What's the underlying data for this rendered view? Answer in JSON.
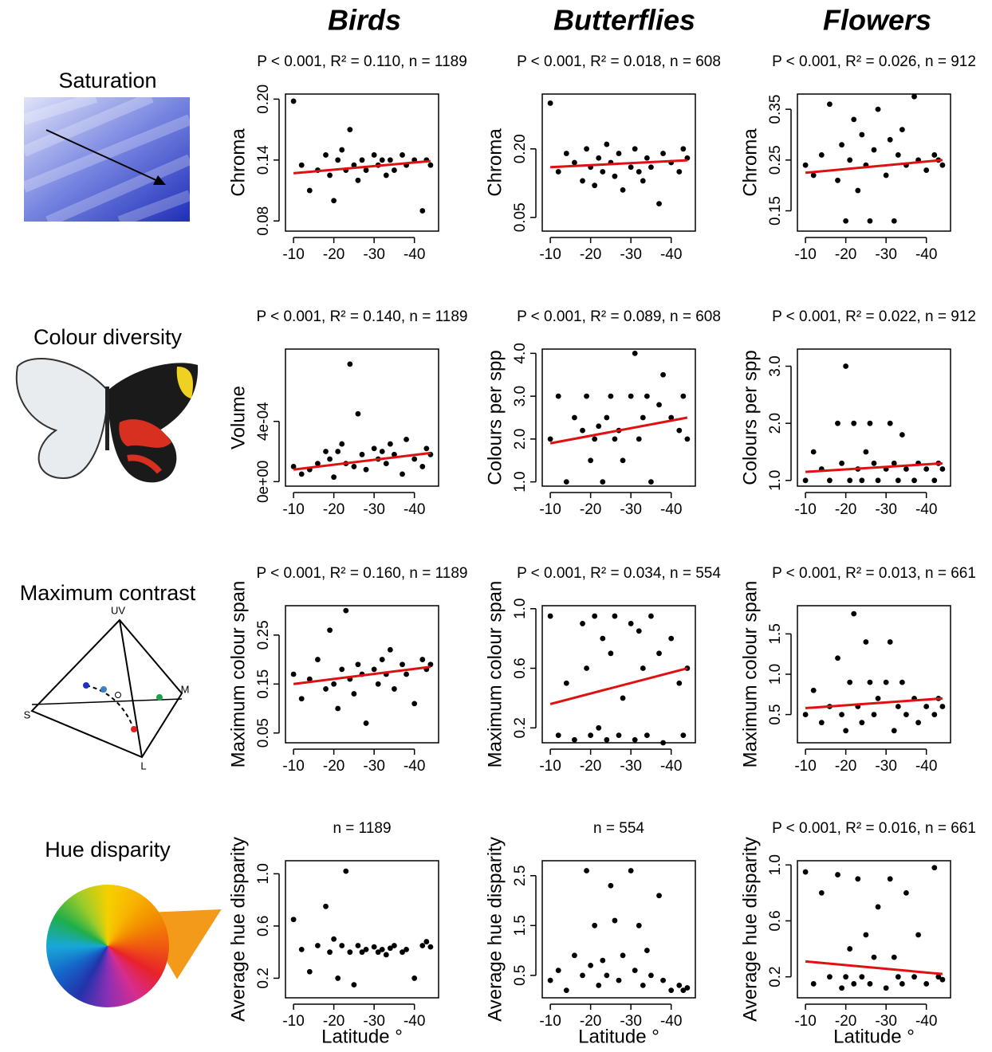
{
  "column_titles": [
    "Birds",
    "Butterflies",
    "Flowers"
  ],
  "row_titles": [
    "Saturation",
    "Colour diversity",
    "Maximum contrast",
    "Hue disparity"
  ],
  "tetrahedron_labels": [
    "UV",
    "S",
    "M",
    "L"
  ],
  "chart_data": [
    {
      "type": "scatter",
      "title": "P < 0.001, R² = 0.110, n = 1189",
      "ylabel": "Chroma",
      "xlim": [
        -8,
        -46
      ],
      "xticks": [
        -10,
        -20,
        -30,
        -40
      ],
      "ylim": [
        0.07,
        0.205
      ],
      "yticks": [
        {
          "value": 0.08,
          "label": "0.08"
        },
        0.14,
        {
          "value": 0.2,
          "label": "0.20"
        }
      ],
      "x": [
        -10,
        -12,
        -14,
        -16,
        -18,
        -19,
        -20,
        -21,
        -22,
        -23,
        -24,
        -25,
        -26,
        -27,
        -28,
        -30,
        -31,
        -32,
        -33,
        -34,
        -35,
        -37,
        -38,
        -40,
        -42,
        -43,
        -44
      ],
      "y": [
        0.198,
        0.135,
        0.11,
        0.13,
        0.145,
        0.125,
        0.1,
        0.14,
        0.15,
        0.13,
        0.17,
        0.135,
        0.12,
        0.14,
        0.13,
        0.145,
        0.135,
        0.14,
        0.125,
        0.14,
        0.13,
        0.145,
        0.135,
        0.14,
        0.09,
        0.14,
        0.135
      ],
      "color": "#000000",
      "trend": {
        "color": "#e01010",
        "x": [
          -10,
          -44
        ],
        "y": [
          0.127,
          0.139
        ]
      }
    },
    {
      "type": "scatter",
      "title": "P < 0.001, R² = 0.018, n = 608",
      "ylabel": "Chroma",
      "xlim": [
        -8,
        -46
      ],
      "xticks": [
        -10,
        -20,
        -30,
        -40
      ],
      "ylim": [
        0.02,
        0.32
      ],
      "yticks": [
        0.05,
        {
          "value": 0.2,
          "label": "0.20"
        }
      ],
      "x": [
        -10,
        -12,
        -14,
        -16,
        -18,
        -19,
        -20,
        -21,
        -22,
        -23,
        -24,
        -25,
        -26,
        -27,
        -28,
        -30,
        -31,
        -32,
        -33,
        -34,
        -35,
        -37,
        -38,
        -40,
        -42,
        -43,
        -44
      ],
      "y": [
        0.3,
        0.15,
        0.19,
        0.17,
        0.13,
        0.2,
        0.16,
        0.12,
        0.18,
        0.15,
        0.21,
        0.17,
        0.14,
        0.19,
        0.11,
        0.16,
        0.2,
        0.15,
        0.13,
        0.18,
        0.16,
        0.08,
        0.19,
        0.17,
        0.15,
        0.2,
        0.18
      ],
      "color": "#000000",
      "trend": {
        "color": "#e01010",
        "x": [
          -10,
          -44
        ],
        "y": [
          0.16,
          0.175
        ]
      }
    },
    {
      "type": "scatter",
      "title": "P < 0.001, R² = 0.026, n = 912",
      "ylabel": "Chroma",
      "xlim": [
        -8,
        -46
      ],
      "xticks": [
        -10,
        -20,
        -30,
        -40
      ],
      "ylim": [
        0.11,
        0.38
      ],
      "yticks": [
        0.15,
        0.25,
        0.35
      ],
      "x": [
        -10,
        -12,
        -14,
        -16,
        -18,
        -19,
        -20,
        -21,
        -22,
        -23,
        -24,
        -25,
        -26,
        -27,
        -28,
        -30,
        -31,
        -32,
        -33,
        -34,
        -35,
        -37,
        -38,
        -40,
        -42,
        -43,
        -44
      ],
      "y": [
        0.24,
        0.22,
        0.26,
        0.36,
        0.21,
        0.28,
        0.13,
        0.25,
        0.33,
        0.19,
        0.3,
        0.24,
        0.13,
        0.27,
        0.35,
        0.22,
        0.29,
        0.13,
        0.26,
        0.31,
        0.24,
        0.375,
        0.25,
        0.23,
        0.26,
        0.25,
        0.24
      ],
      "color": "#000000",
      "trend": {
        "color": "#e01010",
        "x": [
          -10,
          -44
        ],
        "y": [
          0.225,
          0.25
        ]
      }
    },
    {
      "type": "scatter",
      "title": "P < 0.001, R² = 0.140, n = 1189",
      "ylabel": "Volume",
      "xlim": [
        -8,
        -46
      ],
      "xticks": [
        -10,
        -20,
        -30,
        -40
      ],
      "ylim": [
        -3e-05,
        0.00088
      ],
      "yticks": [
        {
          "value": 0,
          "label": "0e+00"
        },
        {
          "value": 0.0004,
          "label": "4e-04"
        }
      ],
      "x": [
        -10,
        -12,
        -14,
        -16,
        -18,
        -19,
        -20,
        -21,
        -22,
        -23,
        -24,
        -25,
        -26,
        -27,
        -28,
        -30,
        -31,
        -32,
        -33,
        -34,
        -35,
        -37,
        -38,
        -40,
        -42,
        -43,
        -44
      ],
      "y": [
        0.0001,
        5e-05,
        8e-05,
        0.00012,
        0.0002,
        0.00015,
        3e-05,
        0.0002,
        0.00025,
        0.00012,
        0.00078,
        0.0001,
        0.00045,
        0.00018,
        8e-05,
        0.00022,
        0.00015,
        0.0002,
        0.00012,
        0.00025,
        0.00018,
        5e-05,
        0.00028,
        0.00015,
        0.0001,
        0.00022,
        0.00018
      ],
      "color": "#000000",
      "trend": {
        "color": "#e01010",
        "x": [
          -10,
          -44
        ],
        "y": [
          8e-05,
          0.00019
        ]
      }
    },
    {
      "type": "scatter",
      "title": "P < 0.001, R² = 0.089, n = 608",
      "ylabel": "Colours per spp",
      "xlim": [
        -8,
        -46
      ],
      "xticks": [
        -10,
        -20,
        -30,
        -40
      ],
      "ylim": [
        0.9,
        4.1
      ],
      "yticks": [
        {
          "value": 1,
          "label": "1.0"
        },
        {
          "value": 2,
          "label": "2.0"
        },
        {
          "value": 3,
          "label": "3.0"
        },
        {
          "value": 4,
          "label": "4.0"
        }
      ],
      "x": [
        -10,
        -12,
        -14,
        -16,
        -18,
        -19,
        -20,
        -21,
        -22,
        -23,
        -24,
        -25,
        -26,
        -27,
        -28,
        -30,
        -31,
        -32,
        -33,
        -34,
        -35,
        -37,
        -38,
        -40,
        -42,
        -43,
        -44
      ],
      "y": [
        2.0,
        3.0,
        1.0,
        2.5,
        2.2,
        3.0,
        1.5,
        2.0,
        2.3,
        1.0,
        2.5,
        3.0,
        2.0,
        2.2,
        1.5,
        3.0,
        4.0,
        2.0,
        2.5,
        3.0,
        1.0,
        2.8,
        3.5,
        2.5,
        2.2,
        3.0,
        2.0
      ],
      "color": "#000000",
      "trend": {
        "color": "#e01010",
        "x": [
          -10,
          -44
        ],
        "y": [
          1.9,
          2.5
        ]
      }
    },
    {
      "type": "scatter",
      "title": "P < 0.001, R² = 0.022, n = 912",
      "ylabel": "Colours per spp",
      "xlim": [
        -8,
        -46
      ],
      "xticks": [
        -10,
        -20,
        -30,
        -40
      ],
      "ylim": [
        0.9,
        3.3
      ],
      "yticks": [
        {
          "value": 1,
          "label": "1.0"
        },
        {
          "value": 2,
          "label": "2.0"
        },
        {
          "value": 3,
          "label": "3.0"
        }
      ],
      "x": [
        -10,
        -12,
        -14,
        -16,
        -18,
        -19,
        -20,
        -21,
        -22,
        -23,
        -24,
        -25,
        -26,
        -27,
        -28,
        -30,
        -31,
        -32,
        -33,
        -34,
        -35,
        -37,
        -38,
        -40,
        -42,
        -43,
        -44
      ],
      "y": [
        1.0,
        1.5,
        1.2,
        1.0,
        2.0,
        1.3,
        3.0,
        1.0,
        2.0,
        1.2,
        1.0,
        1.5,
        2.0,
        1.3,
        1.0,
        1.2,
        2.0,
        1.3,
        1.0,
        1.8,
        1.2,
        1.0,
        1.3,
        1.2,
        1.0,
        1.3,
        1.2
      ],
      "color": "#000000",
      "trend": {
        "color": "#e01010",
        "x": [
          -10,
          -44
        ],
        "y": [
          1.15,
          1.3
        ]
      }
    },
    {
      "type": "scatter",
      "title": "P < 0.001, R² = 0.160, n = 1189",
      "ylabel": "Maximum colour span",
      "xlim": [
        -8,
        -46
      ],
      "xticks": [
        -10,
        -20,
        -30,
        -40
      ],
      "ylim": [
        0.03,
        0.31
      ],
      "yticks": [
        0.05,
        0.15,
        0.25
      ],
      "x": [
        -10,
        -12,
        -14,
        -16,
        -18,
        -19,
        -20,
        -21,
        -22,
        -23,
        -24,
        -25,
        -26,
        -27,
        -28,
        -30,
        -31,
        -32,
        -33,
        -34,
        -35,
        -37,
        -38,
        -40,
        -42,
        -43,
        -44
      ],
      "y": [
        0.17,
        0.12,
        0.16,
        0.2,
        0.14,
        0.26,
        0.15,
        0.1,
        0.18,
        0.3,
        0.16,
        0.13,
        0.19,
        0.17,
        0.07,
        0.18,
        0.15,
        0.2,
        0.17,
        0.22,
        0.14,
        0.19,
        0.17,
        0.11,
        0.2,
        0.18,
        0.19
      ],
      "color": "#000000",
      "trend": {
        "color": "#e01010",
        "x": [
          -10,
          -44
        ],
        "y": [
          0.15,
          0.185
        ]
      }
    },
    {
      "type": "scatter",
      "title": "P < 0.001, R² = 0.034, n = 554",
      "ylabel": "Maximum colour span",
      "xlim": [
        -8,
        -46
      ],
      "xticks": [
        -10,
        -20,
        -30,
        -40
      ],
      "ylim": [
        0.1,
        1.02
      ],
      "yticks": [
        0.2,
        0.6,
        {
          "value": 1,
          "label": "1.0"
        }
      ],
      "x": [
        -10,
        -12,
        -14,
        -16,
        -18,
        -19,
        -20,
        -21,
        -22,
        -23,
        -24,
        -25,
        -26,
        -27,
        -28,
        -30,
        -31,
        -32,
        -33,
        -34,
        -35,
        -37,
        -38,
        -40,
        -42,
        -43,
        -44
      ],
      "y": [
        0.95,
        0.15,
        0.5,
        0.12,
        0.9,
        0.6,
        0.15,
        0.95,
        0.2,
        0.8,
        0.12,
        0.7,
        0.95,
        0.15,
        0.4,
        0.9,
        0.12,
        0.85,
        0.6,
        0.15,
        0.95,
        0.7,
        0.1,
        0.8,
        0.5,
        0.15,
        0.6
      ],
      "color": "#000000",
      "trend": {
        "color": "#e01010",
        "x": [
          -10,
          -44
        ],
        "y": [
          0.36,
          0.6
        ]
      }
    },
    {
      "type": "scatter",
      "title": "P < 0.001, R² = 0.013, n = 661",
      "ylabel": "Maximum colour span",
      "xlim": [
        -8,
        -46
      ],
      "xticks": [
        -10,
        -20,
        -30,
        -40
      ],
      "ylim": [
        0.15,
        1.85
      ],
      "yticks": [
        0.5,
        {
          "value": 1,
          "label": "1.0"
        },
        1.5
      ],
      "x": [
        -10,
        -12,
        -14,
        -16,
        -18,
        -19,
        -20,
        -21,
        -22,
        -23,
        -24,
        -25,
        -26,
        -27,
        -28,
        -30,
        -31,
        -32,
        -33,
        -34,
        -35,
        -37,
        -38,
        -40,
        -42,
        -43,
        -44
      ],
      "y": [
        0.5,
        0.8,
        0.4,
        0.6,
        1.2,
        0.5,
        0.3,
        0.9,
        1.75,
        0.6,
        0.4,
        1.4,
        0.9,
        0.5,
        0.7,
        0.9,
        1.4,
        0.3,
        0.6,
        0.9,
        0.5,
        0.7,
        0.4,
        0.6,
        0.5,
        0.7,
        0.6
      ],
      "color": "#000000",
      "trend": {
        "color": "#e01010",
        "x": [
          -10,
          -44
        ],
        "y": [
          0.58,
          0.7
        ]
      }
    },
    {
      "type": "scatter",
      "title": "n = 1189",
      "ylabel": "Average hue disparity",
      "xlabel": "Latitude °",
      "xlim": [
        -8,
        -46
      ],
      "xticks": [
        -10,
        -20,
        -30,
        -40
      ],
      "ylim": [
        0.05,
        1.1
      ],
      "yticks": [
        0.2,
        0.6,
        {
          "value": 1,
          "label": "1.0"
        }
      ],
      "x": [
        -10,
        -12,
        -14,
        -16,
        -18,
        -19,
        -20,
        -21,
        -22,
        -23,
        -24,
        -25,
        -26,
        -27,
        -28,
        -30,
        -31,
        -32,
        -33,
        -34,
        -35,
        -37,
        -38,
        -40,
        -42,
        -43,
        -44
      ],
      "y": [
        0.65,
        0.42,
        0.25,
        0.45,
        0.75,
        0.4,
        0.5,
        0.2,
        0.45,
        1.02,
        0.4,
        0.15,
        0.45,
        0.4,
        0.42,
        0.44,
        0.4,
        0.42,
        0.38,
        0.43,
        0.45,
        0.4,
        0.42,
        0.2,
        0.45,
        0.48,
        0.44
      ],
      "color": "#000000"
    },
    {
      "type": "scatter",
      "title": "n = 554",
      "ylabel": "Average hue disparity",
      "xlabel": "Latitude °",
      "xlim": [
        -8,
        -46
      ],
      "xticks": [
        -10,
        -20,
        -30,
        -40
      ],
      "ylim": [
        0.05,
        2.8
      ],
      "yticks": [
        0.5,
        1.5,
        2.5
      ],
      "x": [
        -10,
        -12,
        -14,
        -16,
        -18,
        -19,
        -20,
        -21,
        -22,
        -23,
        -24,
        -25,
        -26,
        -27,
        -28,
        -30,
        -31,
        -32,
        -33,
        -34,
        -35,
        -37,
        -38,
        -40,
        -42,
        -43,
        -44
      ],
      "y": [
        0.4,
        0.6,
        0.2,
        0.9,
        0.5,
        2.6,
        0.7,
        1.5,
        0.3,
        0.8,
        0.5,
        2.3,
        1.6,
        0.4,
        0.9,
        2.6,
        0.6,
        1.5,
        0.3,
        1.0,
        0.5,
        2.1,
        0.4,
        0.2,
        0.3,
        0.2,
        0.25
      ],
      "color": "#000000"
    },
    {
      "type": "scatter",
      "title": "P < 0.001, R² = 0.016, n = 661",
      "ylabel": "Average hue disparity",
      "xlabel": "Latitude °",
      "xlim": [
        -8,
        -46
      ],
      "xticks": [
        -10,
        -20,
        -30,
        -40
      ],
      "ylim": [
        0.05,
        1.03
      ],
      "yticks": [
        0.2,
        0.6,
        {
          "value": 1,
          "label": "1.0"
        }
      ],
      "x": [
        -10,
        -12,
        -14,
        -16,
        -18,
        -19,
        -20,
        -21,
        -22,
        -23,
        -24,
        -25,
        -26,
        -27,
        -28,
        -30,
        -31,
        -32,
        -33,
        -34,
        -35,
        -37,
        -38,
        -40,
        -42,
        -43,
        -44
      ],
      "y": [
        0.95,
        0.15,
        0.8,
        0.2,
        0.93,
        0.12,
        0.2,
        0.4,
        0.15,
        0.9,
        0.2,
        0.5,
        0.15,
        0.34,
        0.7,
        0.12,
        0.9,
        0.34,
        0.2,
        0.15,
        0.8,
        0.2,
        0.5,
        0.15,
        0.98,
        0.2,
        0.18
      ],
      "color": "#000000",
      "trend": {
        "color": "#e01010",
        "x": [
          -10,
          -44
        ],
        "y": [
          0.31,
          0.22
        ]
      }
    }
  ]
}
